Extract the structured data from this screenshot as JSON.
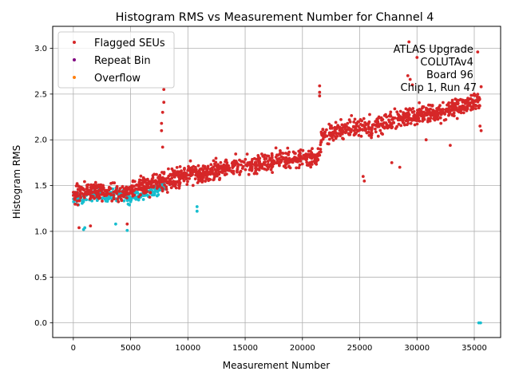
{
  "chart_data": {
    "type": "scatter",
    "title": "Histogram RMS vs Measurement Number for Channel 4",
    "xlabel": "Measurement Number",
    "ylabel": "Histogram RMS",
    "xlim": [
      -1800,
      37300
    ],
    "ylim": [
      -0.16,
      3.24
    ],
    "xticks": [
      0,
      5000,
      10000,
      15000,
      20000,
      25000,
      30000,
      35000
    ],
    "yticks": [
      0.0,
      0.5,
      1.0,
      1.5,
      2.0,
      2.5,
      3.0
    ],
    "xtick_labels": [
      "0",
      "5000",
      "10000",
      "15000",
      "20000",
      "25000",
      "30000",
      "35000"
    ],
    "ytick_labels": [
      "0.0",
      "0.5",
      "1.0",
      "1.5",
      "2.0",
      "2.5",
      "3.0"
    ],
    "grid": true,
    "legend_placement": "top-left",
    "annotation": [
      "ATLAS Upgrade",
      "COLUTAv4",
      "Board 96",
      "Chip 1, Run 47"
    ],
    "series": [
      {
        "name": "",
        "color": "#17becf",
        "trend": [
          [
            0,
            1.38
          ],
          [
            1000,
            1.35
          ],
          [
            2000,
            1.42
          ],
          [
            3000,
            1.38
          ],
          [
            4000,
            1.4
          ],
          [
            5000,
            1.36
          ],
          [
            6000,
            1.42
          ],
          [
            7000,
            1.45
          ],
          [
            8000,
            1.5
          ]
        ],
        "spread": 0.15,
        "x_range": [
          0,
          8000
        ],
        "count": 240,
        "outliers": [
          [
            35400,
            0.0
          ],
          [
            35550,
            0.0
          ],
          [
            10800,
            1.22
          ],
          [
            10800,
            1.27
          ],
          [
            900,
            1.02
          ],
          [
            1000,
            1.04
          ],
          [
            4700,
            1.01
          ],
          [
            3700,
            1.08
          ]
        ]
      },
      {
        "name": "Flagged SEUs",
        "color": "#d62728",
        "trend": [
          [
            0,
            1.4
          ],
          [
            2000,
            1.44
          ],
          [
            4000,
            1.42
          ],
          [
            6000,
            1.48
          ],
          [
            8000,
            1.55
          ],
          [
            10000,
            1.62
          ],
          [
            12000,
            1.65
          ],
          [
            14000,
            1.72
          ],
          [
            16000,
            1.72
          ],
          [
            18000,
            1.78
          ],
          [
            20000,
            1.8
          ],
          [
            21400,
            1.8
          ],
          [
            21700,
            2.05
          ],
          [
            24000,
            2.12
          ],
          [
            26000,
            2.14
          ],
          [
            28000,
            2.22
          ],
          [
            30000,
            2.28
          ],
          [
            32000,
            2.3
          ],
          [
            34000,
            2.38
          ],
          [
            35500,
            2.42
          ]
        ],
        "spread": 0.22,
        "x_range": [
          0,
          35500
        ],
        "count": 1500,
        "outliers": [
          [
            29300,
            3.07
          ],
          [
            7900,
            2.55
          ],
          [
            7900,
            2.41
          ],
          [
            7800,
            2.3
          ],
          [
            7700,
            2.18
          ],
          [
            7700,
            2.1
          ],
          [
            7800,
            1.92
          ],
          [
            21500,
            2.59
          ],
          [
            21500,
            2.52
          ],
          [
            21500,
            2.48
          ],
          [
            29200,
            2.7
          ],
          [
            29400,
            2.66
          ],
          [
            29600,
            2.6
          ],
          [
            35600,
            2.58
          ],
          [
            35300,
            2.96
          ],
          [
            30000,
            2.9
          ],
          [
            35500,
            2.15
          ],
          [
            35600,
            2.1
          ],
          [
            500,
            1.04
          ],
          [
            1500,
            1.06
          ],
          [
            4700,
            1.08
          ],
          [
            25400,
            1.55
          ],
          [
            25300,
            1.6
          ],
          [
            28500,
            1.7
          ],
          [
            27800,
            1.75
          ],
          [
            32900,
            1.94
          ],
          [
            30800,
            2.0
          ]
        ]
      },
      {
        "name": "Repeat Bin",
        "color": "#800080",
        "count": 0
      },
      {
        "name": "Overflow",
        "color": "#ff7f0e",
        "count": 0
      }
    ]
  }
}
